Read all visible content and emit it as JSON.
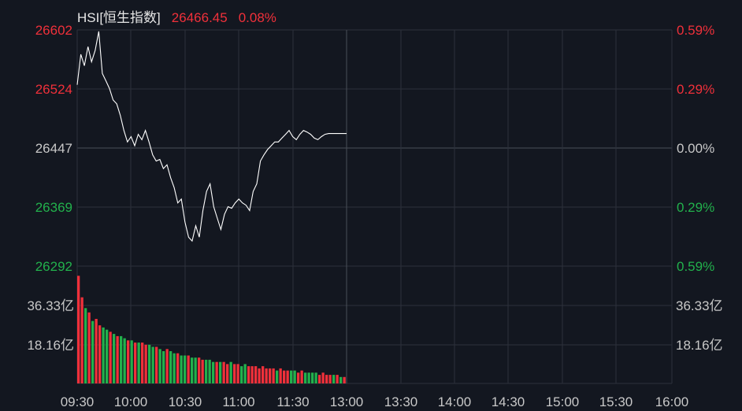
{
  "header": {
    "symbol": "HSI[恒生指数]",
    "price": "26466.45",
    "change_pct": "0.08%"
  },
  "colors": {
    "background": "#131720",
    "grid": "#2c313b",
    "up": "#f0303a",
    "down": "#22b14c",
    "neutral": "#c8c8c8",
    "line": "#ffffff"
  },
  "chart_data": [
    {
      "type": "line",
      "title": "HSI[恒生指数]",
      "prev_close": 26447,
      "y_ticks_left": [
        "26602",
        "26524",
        "26447",
        "26369",
        "26292"
      ],
      "y_ticks_right": [
        "0.59%",
        "0.29%",
        "0.00%",
        "0.29%",
        "0.59%"
      ],
      "ylim": [
        26292,
        26602
      ],
      "x_ticks": [
        "09:30",
        "10:00",
        "10:30",
        "11:00",
        "11:30",
        "13:00",
        "13:30",
        "14:00",
        "14:30",
        "15:00",
        "15:30",
        "16:00"
      ],
      "series": [
        {
          "x": [
            "09:30",
            "09:32",
            "09:34",
            "09:36",
            "09:38",
            "09:40",
            "09:42",
            "09:44",
            "09:46",
            "09:48",
            "09:50",
            "09:52",
            "09:54",
            "09:56",
            "09:58",
            "10:00",
            "10:02",
            "10:04",
            "10:06",
            "10:08",
            "10:10",
            "10:12",
            "10:14",
            "10:16",
            "10:18",
            "10:20",
            "10:22",
            "10:24",
            "10:26",
            "10:28",
            "10:30",
            "10:32",
            "10:34",
            "10:36",
            "10:38",
            "10:40",
            "10:42",
            "10:44",
            "10:46",
            "10:48",
            "10:50",
            "10:52",
            "10:54",
            "10:56",
            "10:58",
            "11:00",
            "11:02",
            "11:04",
            "11:06",
            "11:08",
            "11:10",
            "11:12",
            "11:14",
            "11:16",
            "11:18",
            "11:20",
            "11:22",
            "11:24",
            "11:26",
            "11:28",
            "11:30",
            "11:32",
            "11:34",
            "11:36",
            "11:38",
            "11:40",
            "11:42",
            "11:44",
            "11:46",
            "11:48",
            "11:50",
            "11:52",
            "11:54",
            "11:56",
            "11:58",
            "12:00"
          ],
          "values": [
            26530,
            26570,
            26555,
            26580,
            26560,
            26575,
            26600,
            26545,
            26535,
            26525,
            26510,
            26505,
            26490,
            26470,
            26455,
            26462,
            26450,
            26465,
            26458,
            26470,
            26455,
            26438,
            26430,
            26432,
            26420,
            26425,
            26408,
            26395,
            26375,
            26380,
            26350,
            26330,
            26325,
            26345,
            26330,
            26365,
            26390,
            26400,
            26370,
            26355,
            26340,
            26360,
            26370,
            26368,
            26375,
            26380,
            26375,
            26372,
            26365,
            26390,
            26400,
            26430,
            26438,
            26445,
            26450,
            26455,
            26455,
            26460,
            26465,
            26470,
            26462,
            26458,
            26465,
            26470,
            26468,
            26465,
            26460,
            26458,
            26462,
            26465,
            26466,
            26466,
            26466,
            26466,
            26466,
            26466
          ]
        }
      ]
    },
    {
      "type": "bar",
      "title": "",
      "y_ticks_left": [
        "36.33亿",
        "18.16亿"
      ],
      "y_ticks_right": [
        "36.33亿",
        "18.16亿"
      ],
      "ylim": [
        0,
        54.5
      ],
      "unit": "亿",
      "series": [
        {
          "values": [
            50,
            40,
            35,
            33,
            29,
            30,
            27,
            26,
            25,
            24,
            23,
            22,
            22,
            21,
            20,
            20,
            19,
            19,
            19,
            18,
            18,
            17,
            17,
            16,
            15,
            16,
            15,
            14,
            14,
            13,
            13,
            13,
            12,
            12,
            12,
            11,
            11,
            11,
            10,
            10,
            10,
            10,
            9,
            10,
            9,
            9,
            8,
            9,
            8,
            8,
            8,
            7,
            8,
            7,
            7,
            7,
            6,
            7,
            6,
            6,
            6,
            6,
            5,
            6,
            5,
            5,
            5,
            5,
            4,
            5,
            4,
            4,
            4,
            4,
            3,
            3
          ],
          "up": [
            true,
            true,
            false,
            true,
            false,
            true,
            true,
            false,
            false,
            true,
            false,
            true,
            false,
            false,
            true,
            false,
            true,
            false,
            true,
            true,
            false,
            false,
            true,
            false,
            false,
            true,
            false,
            false,
            true,
            false,
            false,
            true,
            false,
            false,
            true,
            true,
            false,
            false,
            false,
            true,
            false,
            true,
            true,
            false,
            true,
            true,
            false,
            false,
            true,
            true,
            true,
            true,
            true,
            true,
            true,
            true,
            false,
            true,
            true,
            true,
            false,
            false,
            true,
            true,
            false,
            false,
            false,
            false,
            true,
            true,
            true,
            true,
            false,
            true,
            false,
            true
          ]
        }
      ]
    }
  ]
}
